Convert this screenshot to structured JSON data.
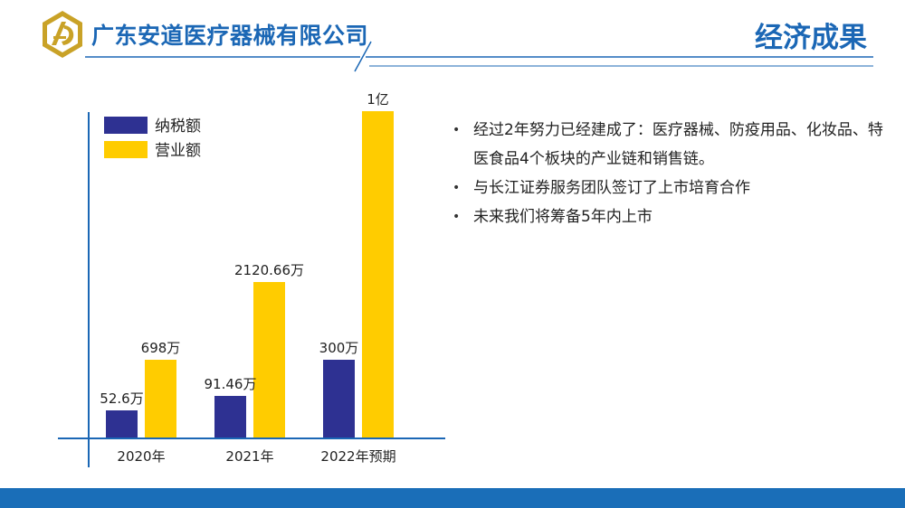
{
  "header": {
    "company": "广东安道医疗器械有限公司",
    "title": "经济成果",
    "brand_color": "#1b67b5",
    "logo_gold": "#c9a227"
  },
  "bullets": [
    "经过2年努力已经建成了：医疗器械、防疫用品、化妆品、特医食品4个板块的产业链和销售链。",
    "与长江证券服务团队签订了上市培育合作",
    "未来我们将筹备5年内上市"
  ],
  "chart_data": {
    "type": "bar",
    "categories": [
      "2020年",
      "2021年",
      "2022年预期"
    ],
    "series": [
      {
        "name": "纳税额",
        "values": [
          52.6,
          91.46,
          300
        ],
        "labels": [
          "52.6万",
          "91.46万",
          "300万"
        ],
        "color": "#2e3192"
      },
      {
        "name": "营业额",
        "values": [
          698,
          2120.66,
          10000
        ],
        "labels": [
          "698万",
          "2120.66万",
          "1亿"
        ],
        "color": "#ffcc00"
      }
    ],
    "unit": "万",
    "legend": "top-left"
  }
}
